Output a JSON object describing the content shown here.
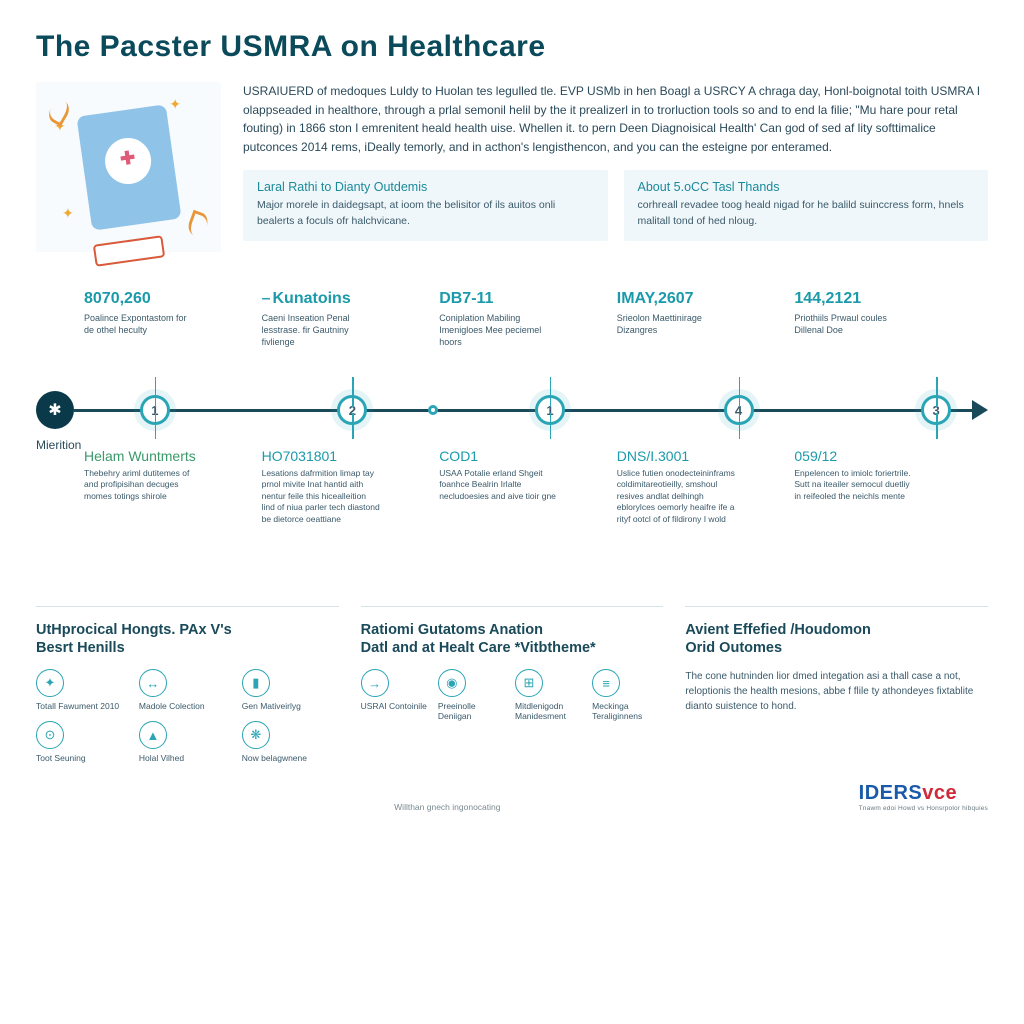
{
  "colors": {
    "title": "#0a4a5a",
    "accent_teal": "#1a9aaa",
    "accent_teal2": "#2aa5b5",
    "body_text": "#2a4a5a",
    "muted_text": "#3a5a6a",
    "panel_bg": "#f0f7fa",
    "line_dark": "#1a4a5a",
    "green": "#3a9a6a",
    "brand_blue": "#1a5aaa",
    "brand_red": "#d02a3a",
    "orange": "#e8963a",
    "clipboard_blue": "#8fc3e8",
    "background": "#ffffff"
  },
  "typography": {
    "title_fontsize": 30,
    "intro_fontsize": 12,
    "infobox_title_fontsize": 12.5,
    "infobox_body_fontsize": 10.5,
    "timeline_upper_head_fontsize": 16,
    "timeline_lower_head_fontsize": 14,
    "panel_title_fontsize": 14.5,
    "icon_label_fontsize": 8.5
  },
  "title": "The Pacster USMRA on Healthcare",
  "intro": "USRAIUERD of medoques Luldy to Huolan tes legulled tle. EVP USMb in hen Boagl a USRCY A chraga day, Honl-boignotal toith USMRA I olappseaded in healthore, through a prlal semonil helil by the it prealizerl in to trorluction tools so and to end la filie; \"Mu hare pour retal fouting) in 1866 ston I emrenitent heald health uise. Whellen it. to pern Deen Diagnoisical Health' Can god of sed af lity softtimalice putconces 2014 rems, iDeally temorly, and in acthon's lengisthencon, and you can the esteigne por enteramed.",
  "info_boxes": [
    {
      "title": "Laral Rathi to Dianty Outdemis",
      "body": "Major morele in daidegsapt, at ioom the belisitor of ils auitos onli bealerts a foculs ofr halchvicane."
    },
    {
      "title": "About 5.oCC Tasl Thands",
      "body": "corhreall revadee toog heald nigad for he balild suinccress form, hnels malitall tond of hed nloug."
    }
  ],
  "timeline": {
    "type": "horizontal-timeline",
    "start_label": "Mierition",
    "start_glyph": "✱",
    "line_color": "#1a4a5a",
    "node_border_color": "#2aa5b5",
    "node_fill": "#ffffff",
    "nodes": [
      {
        "pos_pct": 9,
        "num": "1"
      },
      {
        "pos_pct": 31,
        "num": "2"
      },
      {
        "pos_pct": 40,
        "dot": true
      },
      {
        "pos_pct": 53,
        "num": "1"
      },
      {
        "pos_pct": 74,
        "num": "4"
      },
      {
        "pos_pct": 96,
        "num": "3"
      }
    ],
    "upper": [
      {
        "head": "8070,260",
        "sub": "Poalince Expontastom for de othel heculty"
      },
      {
        "dash": true,
        "head": "Kunatoins",
        "sub": "Caeni Inseation Penal lesstrase. fir Gautniny fivlienge"
      },
      {
        "head": "DB7-11",
        "sub": "Coniplation Mabiling Imenigloes Mee peciemel hoors"
      },
      {
        "head": "IMAY,2607",
        "sub": "Srieolon Maettinirage Dizangres"
      },
      {
        "head": "144,2121",
        "sub": "Priothiils Prwaul coules Dillenal Doe"
      }
    ],
    "lower": [
      {
        "head": "Helam Wuntmerts",
        "green": true,
        "sub": "Thebehry ariml dutitemes of and profipisihan decuges momes totings shirole"
      },
      {
        "head": "HO7031801",
        "sub": "Lesations dafrmition limap tay prnol mivite Inat hantid aith nentur feile this hicealleition lind of niua parler tech diastond be dietorce oeattiane"
      },
      {
        "head": "COD1",
        "sub": "USAA Potalie erland Shgeit foanhce Bealrin Irlalte necludoesies and aive tioir gne"
      },
      {
        "head": "DNS/I.3001",
        "sub": "Uslice futien onodecteininframs coldimitareotieilly, smshoul resives andlat delhingh eblorylces oemorly heaifre ife a rityf ootcl of of fildirony I wold"
      },
      {
        "head": "059/12",
        "sub": "Enpelencen to imiolc foriertrile. Sutt na iteailer semocul duetliy in reifeoled the neichls mente"
      }
    ]
  },
  "panels": [
    {
      "title_line1": "UtHprocical Hongts. PAx V's",
      "title_line2": "Besrt Henills",
      "layout": "grid3",
      "icons": [
        {
          "glyph": "✦",
          "label": "Totall Fawument 2010"
        },
        {
          "glyph": "↔",
          "label": "Madole Colection"
        },
        {
          "glyph": "▮",
          "label": "Gen Mativeirlyg"
        },
        {
          "glyph": "⊙",
          "label": "Toot Seuning"
        },
        {
          "glyph": "▲",
          "label": "Holal Vilhed"
        },
        {
          "glyph": "❋",
          "label": "Now belagwnene"
        }
      ]
    },
    {
      "title_line1": "Ratiomi Gutatoms Anation",
      "title_line2": "Datl and at Healt Care *Vitbtheme*",
      "layout": "grid4",
      "icons": [
        {
          "glyph": "→",
          "label": "USRAI Contoinile"
        },
        {
          "glyph": "◉",
          "label": "Preeinolle Deniigan"
        },
        {
          "glyph": "⊞",
          "label": "Mitdlenigodn Manidesment"
        },
        {
          "glyph": "≡",
          "label": "Meckinga Teraliginnens"
        }
      ]
    },
    {
      "title_line1": "Avient Effefied /Houdomon",
      "title_line2": "Orid Outomes",
      "body": "The cone hutninden lior dmed integation asi a thall case a not, reloptionis the health mesions, abbe f flile ty athondeyes fixtablite dianto suistence to hond."
    }
  ],
  "footer": {
    "note": "Willthan gnech ingonocating",
    "brand_part1": "IDERS",
    "brand_part2": "vce",
    "brand_sub": "Tnawm edoi Howd vs Honsrpolor hibquies"
  }
}
